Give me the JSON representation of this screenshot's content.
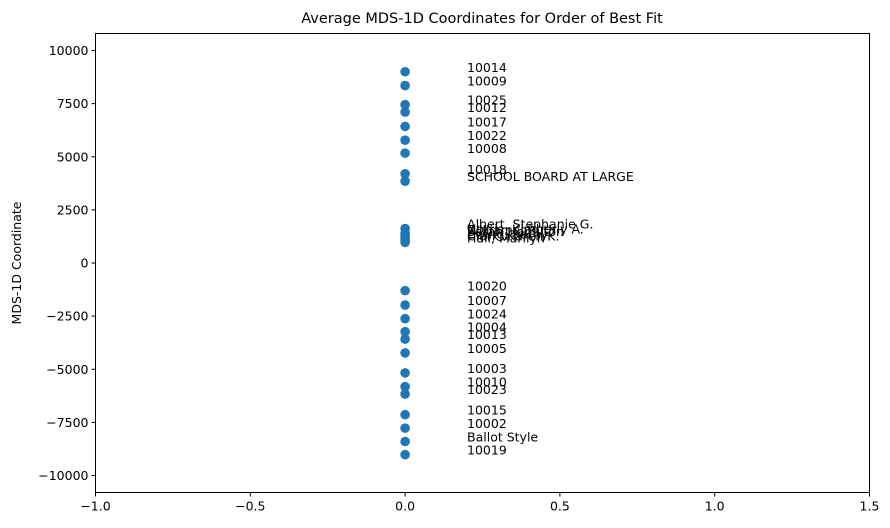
{
  "chart_data": {
    "type": "scatter",
    "title": "Average MDS-1D Coordinates for Order of Best Fit",
    "xlabel": "",
    "ylabel": "MDS-1D Coordinate",
    "xlim": [
      -1.0,
      1.5
    ],
    "ylim": [
      -10800,
      10800
    ],
    "xticks": [
      -1.0,
      -0.5,
      0.0,
      0.5,
      1.0,
      1.5
    ],
    "xtick_labels": [
      "−1.0",
      "−0.5",
      "0.0",
      "0.5",
      "1.0",
      "1.5"
    ],
    "yticks": [
      -10000,
      -7500,
      -5000,
      -2500,
      0,
      2500,
      5000,
      7500,
      10000
    ],
    "ytick_labels": [
      "−10000",
      "−7500",
      "−5000",
      "−2500",
      "0",
      "2500",
      "5000",
      "7500",
      "10000"
    ],
    "grid": false,
    "marker_color": "#1f77b4",
    "points": [
      {
        "label": "10014",
        "x": 0,
        "y": 9000
      },
      {
        "label": "10009",
        "x": 0,
        "y": 8350
      },
      {
        "label": "10025",
        "x": 0,
        "y": 7450
      },
      {
        "label": "10012",
        "x": 0,
        "y": 7100
      },
      {
        "label": "10017",
        "x": 0,
        "y": 6430
      },
      {
        "label": "10022",
        "x": 0,
        "y": 5780
      },
      {
        "label": "10008",
        "x": 0,
        "y": 5170
      },
      {
        "label": "10018",
        "x": 0,
        "y": 4200
      },
      {
        "label": "SCHOOL BOARD AT LARGE",
        "x": 0,
        "y": 3850
      },
      {
        "label": "Albert, Stephanie G.",
        "x": 0,
        "y": 1620
      },
      {
        "label": "Norris, Kimberly A.",
        "x": 0,
        "y": 1400
      },
      {
        "label": "Williams, Ruth",
        "x": 0,
        "y": 1330
      },
      {
        "label": "Sarah Hamilton",
        "x": 0,
        "y": 1260
      },
      {
        "label": "Ewing, Kathy",
        "x": 0,
        "y": 1150
      },
      {
        "label": "Clark, Karen K.",
        "x": 0,
        "y": 1050
      },
      {
        "label": "Hall, Marilyn",
        "x": 0,
        "y": 970
      },
      {
        "label": "10020",
        "x": 0,
        "y": -1300
      },
      {
        "label": "10007",
        "x": 0,
        "y": -1980
      },
      {
        "label": "10024",
        "x": 0,
        "y": -2620
      },
      {
        "label": "10004",
        "x": 0,
        "y": -3230
      },
      {
        "label": "10013",
        "x": 0,
        "y": -3580
      },
      {
        "label": "10005",
        "x": 0,
        "y": -4230
      },
      {
        "label": "10003",
        "x": 0,
        "y": -5170
      },
      {
        "label": "10010",
        "x": 0,
        "y": -5820
      },
      {
        "label": "10023",
        "x": 0,
        "y": -6170
      },
      {
        "label": "10015",
        "x": 0,
        "y": -7140
      },
      {
        "label": "10002",
        "x": 0,
        "y": -7770
      },
      {
        "label": "Ballot Style",
        "x": 0,
        "y": -8400
      },
      {
        "label": "10019",
        "x": 0,
        "y": -9020
      }
    ]
  }
}
